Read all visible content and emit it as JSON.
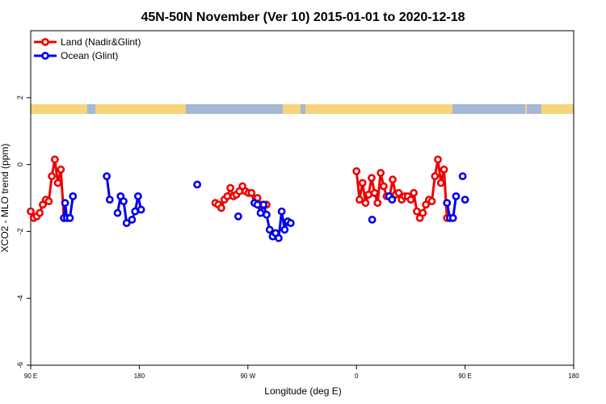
{
  "chart_data": {
    "type": "line",
    "title": "45N-50N November (Ver 10)   2015-01-01 to 2020-12-18",
    "xlabel": "Longitude (deg E)",
    "ylabel": "XCO2 - MLO trend (ppm)",
    "xlim": [
      90,
      450
    ],
    "ylim": [
      -6,
      4
    ],
    "x_ticks": [
      {
        "value": 90,
        "label": "90 E"
      },
      {
        "value": 180,
        "label": "180"
      },
      {
        "value": 270,
        "label": "90 W"
      },
      {
        "value": 360,
        "label": "0"
      },
      {
        "value": 450,
        "label": "90 E"
      },
      {
        "value": 540,
        "label": "180"
      }
    ],
    "y_ticks": [
      {
        "value": -6,
        "label": "-6"
      },
      {
        "value": -4,
        "label": "-4"
      },
      {
        "value": -2,
        "label": "-2"
      },
      {
        "value": 0,
        "label": "0"
      },
      {
        "value": 2,
        "label": "2"
      }
    ],
    "legend": {
      "position": "top-left"
    },
    "land_band_colors": {
      "land": "#f6d47a",
      "ocean": "#a4b8d8"
    },
    "series": [
      {
        "name": "Land (Nadir&Glint)",
        "color": "#ee0000",
        "segments": [
          [
            [
              90,
              -1.4
            ],
            [
              92.5,
              -1.6
            ],
            [
              95,
              -1.55
            ],
            [
              97.5,
              -1.45
            ],
            [
              100,
              -1.2
            ],
            [
              102.5,
              -1.05
            ],
            [
              105,
              -1.1
            ],
            [
              107.5,
              -0.35
            ],
            [
              110,
              0.15
            ],
            [
              112.5,
              -0.55
            ],
            [
              115,
              -0.15
            ],
            [
              117.5,
              -1.6
            ]
          ],
          [
            [
              243,
              -1.15
            ],
            [
              245.5,
              -1.2
            ],
            [
              248,
              -1.3
            ],
            [
              250.5,
              -1.05
            ],
            [
              253,
              -0.95
            ],
            [
              255.5,
              -0.7
            ],
            [
              258,
              -0.95
            ],
            [
              260.5,
              -0.9
            ],
            [
              263,
              -0.8
            ],
            [
              265.5,
              -0.65
            ],
            [
              268,
              -0.8
            ],
            [
              270.5,
              -0.85
            ],
            [
              273,
              -0.85
            ],
            [
              275.5,
              -1.15
            ],
            [
              278,
              -1.0
            ]
          ],
          [
            [
              360,
              -0.2
            ],
            [
              362.5,
              -1.05
            ],
            [
              365,
              -0.55
            ],
            [
              367.5,
              -1.15
            ],
            [
              370,
              -0.9
            ],
            [
              372.5,
              -0.4
            ],
            [
              375,
              -0.85
            ],
            [
              377.5,
              -1.15
            ],
            [
              380,
              -0.25
            ],
            [
              382.5,
              -0.65
            ],
            [
              385,
              -0.95
            ],
            [
              387.5,
              -0.95
            ],
            [
              390,
              -0.45
            ],
            [
              392.5,
              -0.9
            ],
            [
              395,
              -0.85
            ],
            [
              397.5,
              -1.05
            ],
            [
              400,
              -0.95
            ],
            [
              402.5,
              -0.95
            ],
            [
              405,
              -1.05
            ],
            [
              407.5,
              -0.85
            ],
            [
              410,
              -1.4
            ],
            [
              412.5,
              -1.6
            ],
            [
              415,
              -1.45
            ],
            [
              417.5,
              -1.2
            ],
            [
              420,
              -1.05
            ],
            [
              422.5,
              -1.1
            ],
            [
              425,
              -0.35
            ],
            [
              427.5,
              0.15
            ],
            [
              430,
              -0.55
            ],
            [
              432.5,
              -0.15
            ],
            [
              435,
              -1.6
            ]
          ]
        ],
        "points": [
          [
            280.5,
            -1.2
          ],
          [
            285.5,
            -1.2
          ]
        ]
      },
      {
        "name": "Ocean (Glint)",
        "color": "#0000ee",
        "segments": [
          [
            [
              117.5,
              -1.6
            ],
            [
              118.5,
              -1.15
            ],
            [
              120,
              -1.6
            ],
            [
              122.5,
              -1.6
            ],
            [
              125,
              -0.95
            ]
          ],
          [
            [
              153,
              -0.35
            ],
            [
              155.5,
              -1.05
            ]
          ],
          [
            [
              162,
              -1.45
            ],
            [
              164.5,
              -0.95
            ],
            [
              167,
              -1.1
            ],
            [
              169.5,
              -1.75
            ]
          ],
          [
            [
              174,
              -1.65
            ],
            [
              176.5,
              -1.4
            ],
            [
              179,
              -0.95
            ],
            [
              181.5,
              -1.35
            ]
          ],
          [
            [
              275.5,
              -1.15
            ],
            [
              278,
              -1.2
            ],
            [
              280.5,
              -1.45
            ],
            [
              283,
              -1.2
            ],
            [
              285.5,
              -1.5
            ],
            [
              288,
              -1.95
            ],
            [
              290.5,
              -2.15
            ],
            [
              293,
              -2.05
            ],
            [
              295.5,
              -2.2
            ],
            [
              298,
              -1.4
            ],
            [
              300.5,
              -1.95
            ],
            [
              303,
              -1.7
            ],
            [
              305.5,
              -1.75
            ]
          ],
          [
            [
              387,
              -0.95
            ],
            [
              389.5,
              -1.05
            ]
          ],
          [
            [
              435,
              -1.15
            ],
            [
              437.5,
              -1.6
            ],
            [
              440,
              -1.6
            ],
            [
              442.5,
              -0.95
            ]
          ]
        ],
        "points": [
          [
            228,
            -0.6
          ],
          [
            262,
            -1.55
          ],
          [
            373,
            -1.65
          ],
          [
            448,
            -0.35
          ],
          [
            450,
            -1.05
          ]
        ]
      }
    ]
  }
}
